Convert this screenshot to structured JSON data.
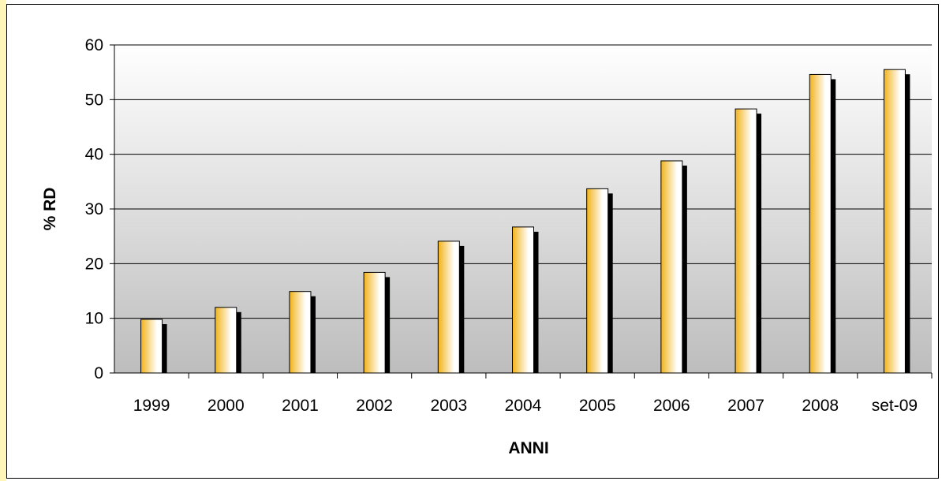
{
  "chart_data": {
    "type": "bar",
    "title": "",
    "xlabel": "ANNI",
    "ylabel": "% RD",
    "categories": [
      "1999",
      "2000",
      "2001",
      "2002",
      "2003",
      "2004",
      "2005",
      "2006",
      "2007",
      "2008",
      "set-09"
    ],
    "values": [
      9.8,
      12.0,
      14.9,
      18.4,
      24.1,
      26.7,
      33.7,
      38.8,
      48.3,
      54.6,
      55.5
    ],
    "ylim": [
      0,
      60
    ],
    "yticks": [
      0,
      10,
      20,
      30,
      40,
      50,
      60
    ],
    "grid": true,
    "legend": "none",
    "colors": {
      "bar_light": "#ffffff",
      "bar_dark": "#f2b31a",
      "bar_shadow": "#000000",
      "plot_top": "#ffffff",
      "plot_bottom": "#bdbdbd"
    }
  }
}
